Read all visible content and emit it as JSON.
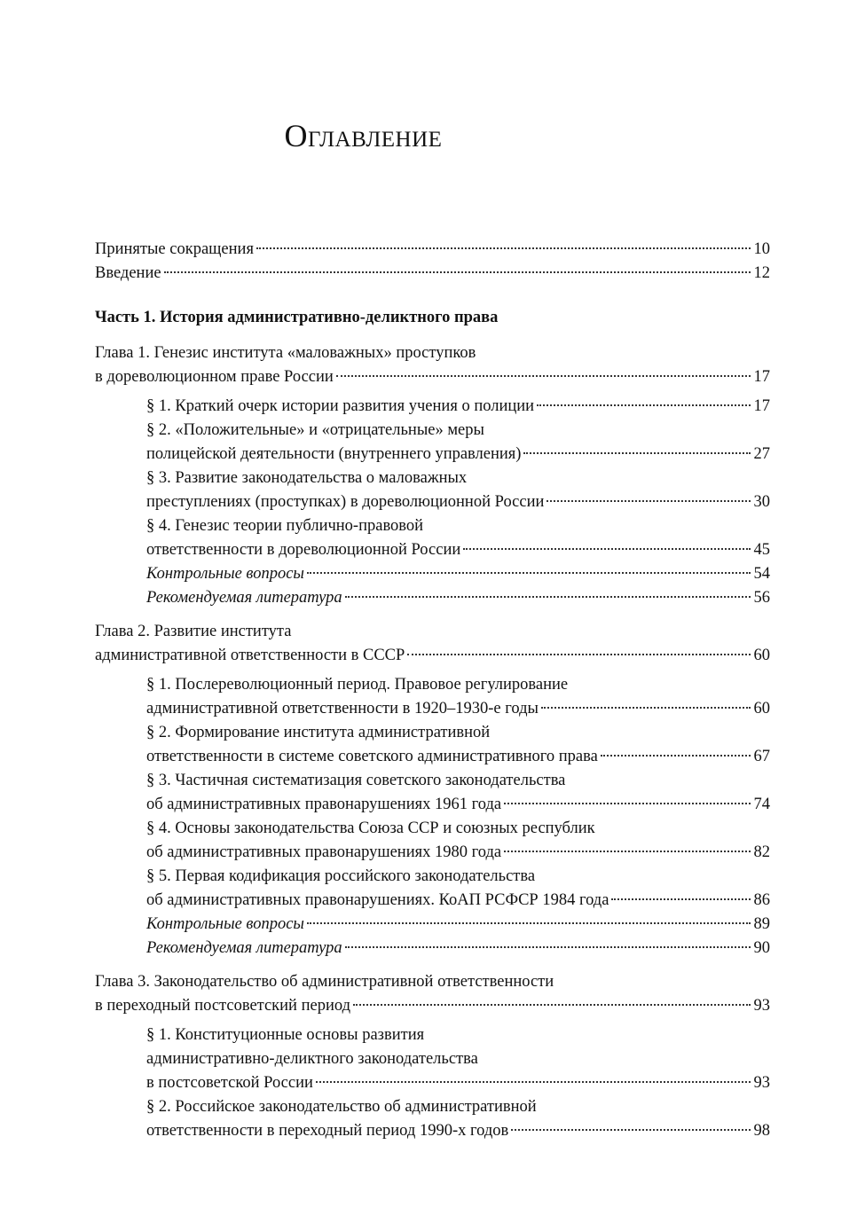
{
  "title": "Оглавление",
  "entries": [
    {
      "type": "top",
      "lines": [
        "Принятые сокращения"
      ],
      "page": "10"
    },
    {
      "type": "top",
      "lines": [
        "Введение"
      ],
      "page": "12"
    },
    {
      "type": "part",
      "lines": [
        "Часть 1. История административно-деликтного права"
      ],
      "page": ""
    },
    {
      "type": "chapter",
      "lines": [
        "Глава 1. Генезис института «маловажных» проступков",
        "в дореволюционном праве России"
      ],
      "page": "17"
    },
    {
      "type": "sub",
      "lines": [
        "§ 1. Краткий очерк истории развития учения о полиции"
      ],
      "page": "17"
    },
    {
      "type": "sub",
      "lines": [
        "§ 2. «Положительные» и «отрицательные» меры",
        "полицейской деятельности (внутреннего управления)"
      ],
      "page": "27"
    },
    {
      "type": "sub",
      "lines": [
        "§ 3. Развитие законодательства о маловажных",
        "преступлениях (проступках) в дореволюционной России"
      ],
      "page": "30"
    },
    {
      "type": "sub",
      "lines": [
        "§ 4. Генезис теории публично-правовой",
        "ответственности в дореволюционной России"
      ],
      "page": "45"
    },
    {
      "type": "sub",
      "italic": true,
      "lines": [
        "Контрольные вопросы"
      ],
      "page": "54"
    },
    {
      "type": "sub",
      "italic": true,
      "lines": [
        "Рекомендуемая литература"
      ],
      "page": "56"
    },
    {
      "type": "chapter",
      "lines": [
        "Глава 2. Развитие института",
        "административной ответственности в СССР"
      ],
      "page": "60"
    },
    {
      "type": "sub",
      "lines": [
        "§ 1. Послереволюционный период. Правовое регулирование",
        "административной ответственности в 1920–1930-е годы"
      ],
      "page": "60"
    },
    {
      "type": "sub",
      "lines": [
        "§ 2. Формирование института административной",
        "ответственности в системе советского административного права"
      ],
      "page": "67"
    },
    {
      "type": "sub",
      "lines": [
        "§ 3. Частичная систематизация советского законодательства",
        "об административных правонарушениях 1961 года"
      ],
      "page": "74"
    },
    {
      "type": "sub",
      "lines": [
        "§ 4. Основы законодательства Союза ССР и союзных республик",
        "об административных правонарушениях 1980 года"
      ],
      "page": "82"
    },
    {
      "type": "sub",
      "lines": [
        "§ 5. Первая кодификация российского законодательства",
        "об административных правонарушениях. КоАП РСФСР 1984 года"
      ],
      "page": "86"
    },
    {
      "type": "sub",
      "italic": true,
      "lines": [
        "Контрольные вопросы"
      ],
      "page": "89"
    },
    {
      "type": "sub",
      "italic": true,
      "lines": [
        "Рекомендуемая литература"
      ],
      "page": "90"
    },
    {
      "type": "chapter",
      "lines": [
        "Глава 3. Законодательство об административной ответственности",
        "в переходный постсоветский период"
      ],
      "page": "93"
    },
    {
      "type": "sub",
      "lines": [
        "§ 1. Конституционные основы развития",
        "административно-деликтного законодательства",
        "в постсоветской России"
      ],
      "page": "93"
    },
    {
      "type": "sub",
      "lines": [
        "§ 2. Российское законодательство об административной",
        "ответственности в переходный период 1990-х годов"
      ],
      "page": "98"
    }
  ]
}
